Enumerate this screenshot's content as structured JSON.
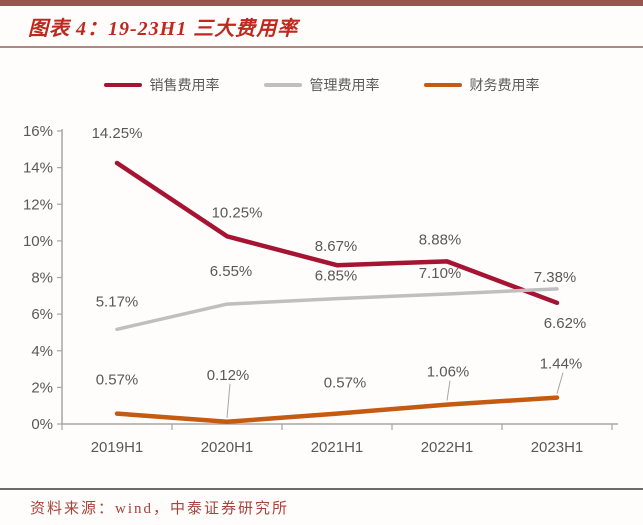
{
  "header": {
    "title": "图表 4：19-23H1 三大费用率"
  },
  "chart_data": {
    "type": "line",
    "title": "19-23H1 三大费用率",
    "categories": [
      "2019H1",
      "2020H1",
      "2021H1",
      "2022H1",
      "2023H1"
    ],
    "series": [
      {
        "name": "销售费用率",
        "color": "#a51432",
        "values": [
          14.25,
          10.25,
          8.67,
          8.88,
          6.62
        ],
        "labels": [
          "14.25%",
          "10.25%",
          "8.67%",
          "8.88%",
          "6.62%"
        ]
      },
      {
        "name": "管理费用率",
        "color": "#bfbfbf",
        "values": [
          5.17,
          6.55,
          6.85,
          7.1,
          7.38
        ],
        "labels": [
          "5.17%",
          "6.55%",
          "6.85%",
          "7.10%",
          "7.38%"
        ]
      },
      {
        "name": "财务费用率",
        "color": "#c55a11",
        "values": [
          0.57,
          0.12,
          0.57,
          1.06,
          1.44
        ],
        "labels": [
          "0.57%",
          "0.12%",
          "0.57%",
          "1.06%",
          "1.44%"
        ]
      }
    ],
    "ylim": [
      0,
      16
    ],
    "ytick_step": 2,
    "ytick_labels": [
      "0%",
      "2%",
      "4%",
      "6%",
      "8%",
      "10%",
      "12%",
      "14%",
      "16%"
    ],
    "xlabel": "",
    "ylabel": "",
    "grid": false,
    "legend_position": "top",
    "data_labels": true
  },
  "footer": {
    "source": "资料来源：wind，中泰证券研究所"
  },
  "colors": {
    "top_bar": "#9b5550",
    "title_text": "#be281e",
    "title_rule": "#b08984",
    "axis": "#a6a6a6",
    "tick_label": "#595959",
    "data_label": "#595959",
    "legend_label": "#595959",
    "footer_rule": "#6b6b6b",
    "footer_text": "#a8433b",
    "background": "#fefdfb"
  }
}
